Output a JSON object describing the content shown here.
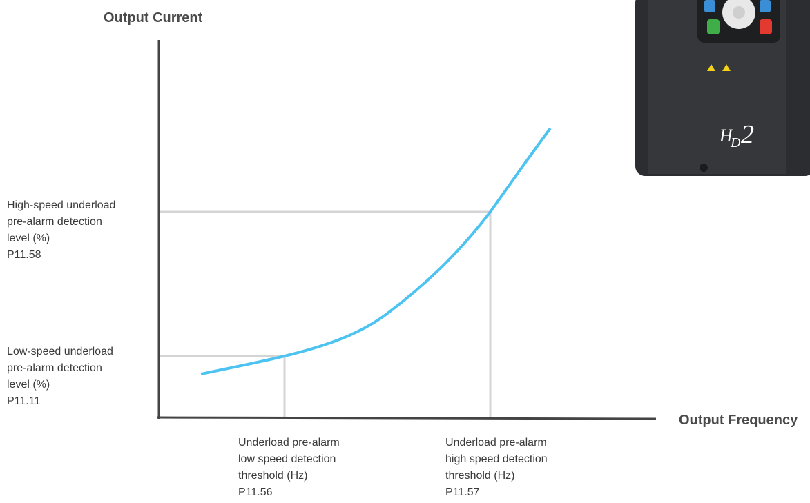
{
  "y_axis_title": "Output Current",
  "x_axis_title": "Output Frequency",
  "high_level_label": [
    "High-speed underload",
    "pre-alarm detection",
    "level (%)",
    "P11.58"
  ],
  "low_level_label": [
    "Low-speed underload",
    "pre-alarm detection",
    "level (%)",
    "P11.11"
  ],
  "low_threshold_label": [
    "Underload pre-alarm",
    "low speed detection",
    "threshold (Hz)",
    "P11.56"
  ],
  "high_threshold_label": [
    "Underload pre-alarm",
    "high speed detection",
    "threshold (Hz)",
    "P11.57"
  ],
  "device_logo": {
    "letter1": "H",
    "letter2": "D",
    "number": "2"
  }
}
